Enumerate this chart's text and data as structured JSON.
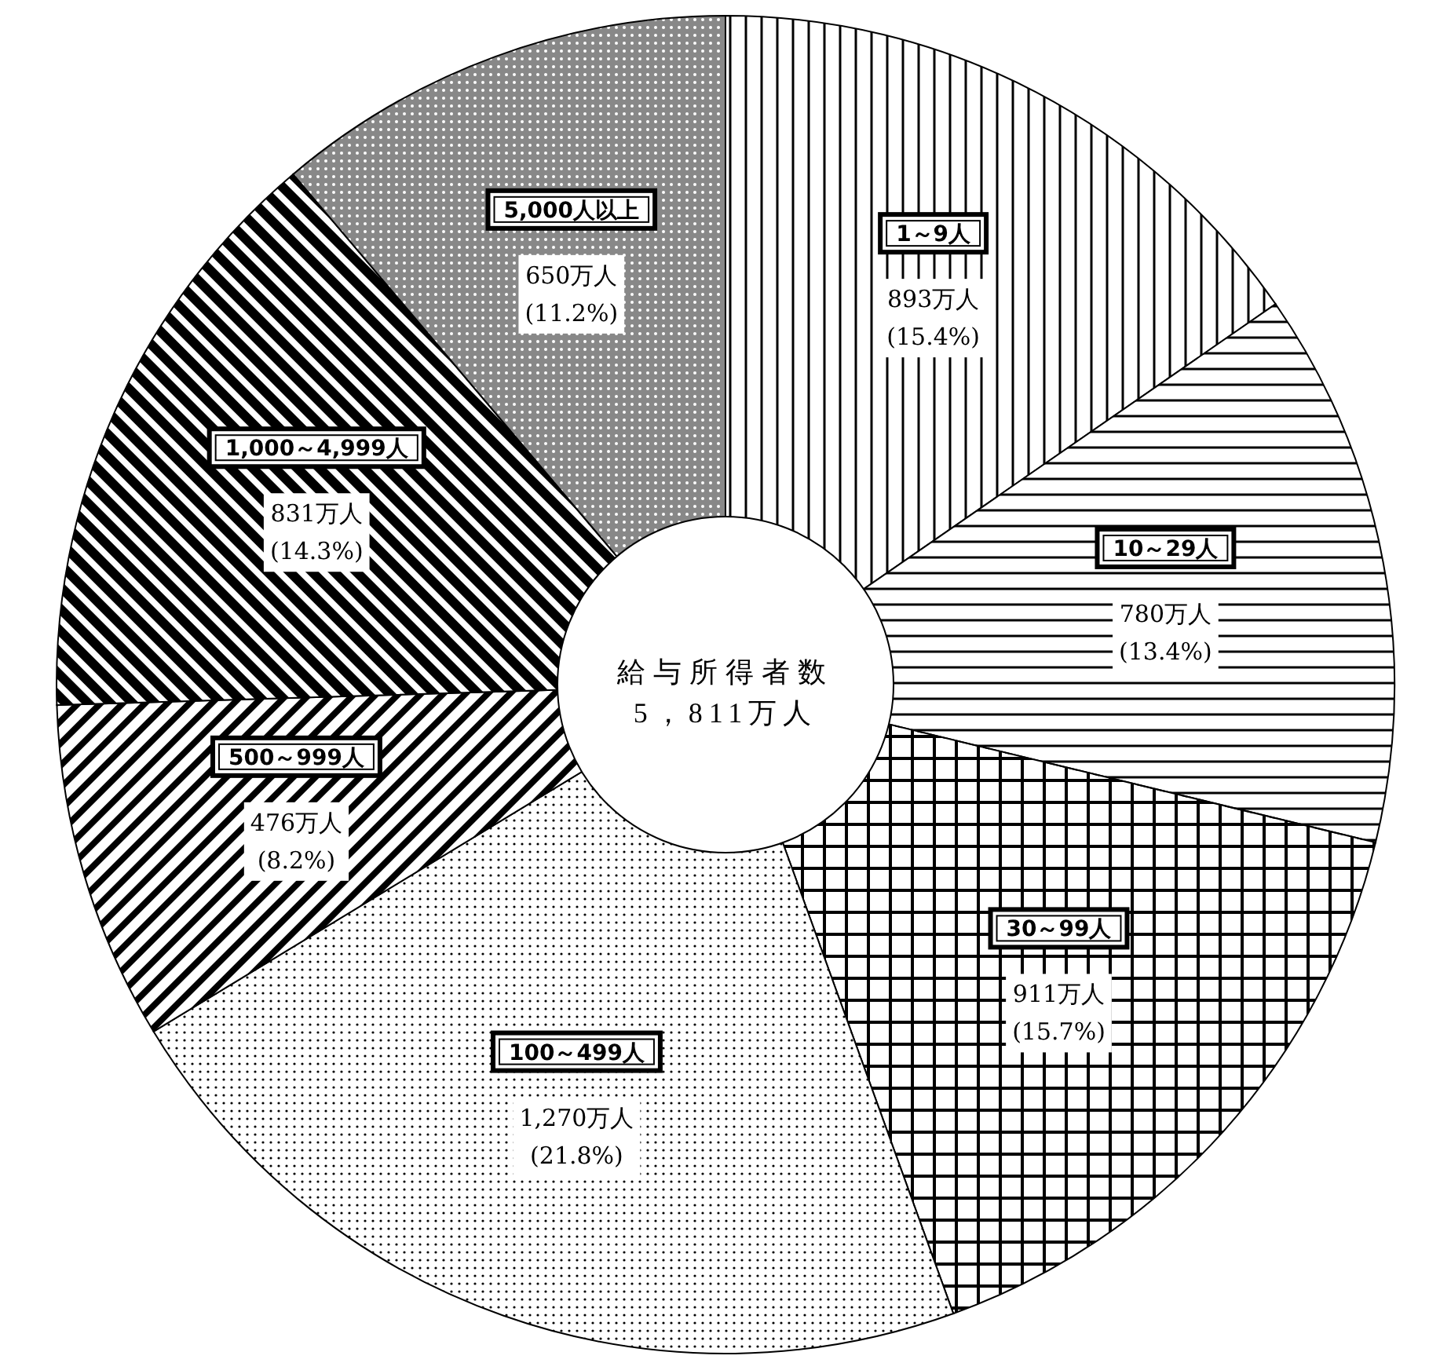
{
  "chart_data": {
    "type": "donut",
    "title": "給与所得者数",
    "subtitle": "5，811万人",
    "categories": [
      "1～9人",
      "10～29人",
      "30～99人",
      "100～499人",
      "500～999人",
      "1,000～4,999人",
      "5,000人以上"
    ],
    "values": [
      893,
      780,
      911,
      1270,
      476,
      831,
      650
    ],
    "value_labels": [
      "893万人\n(15.4%)",
      "780万人\n(13.4%)",
      "911万人\n(15.7%)",
      "1,270万人\n(21.8%)",
      "476万人\n(8.2%)",
      "831万人\n(14.3%)",
      "650万人\n(11.2%)"
    ],
    "colors": [
      "#000000",
      "#000000",
      "#000000",
      "#000000",
      "#000000",
      "#000000",
      "#000000"
    ]
  }
}
